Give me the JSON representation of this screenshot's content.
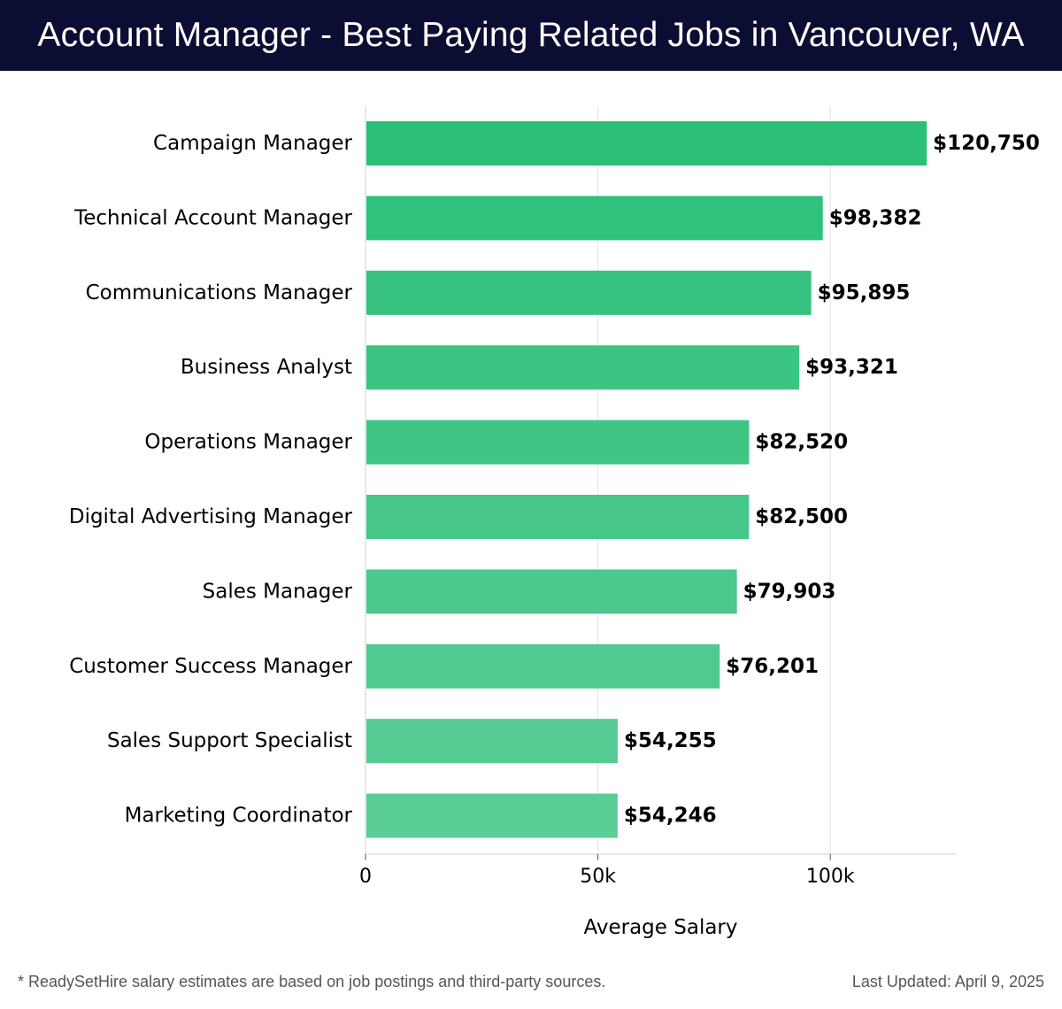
{
  "header": {
    "title": "Account Manager - Best Paying Related Jobs in Vancouver, WA"
  },
  "colors": {
    "header_bg": "#0b0d33",
    "bar_top": "#2bbf77",
    "bar_bottom": "#5bcd97",
    "grid": "#e3e3e3",
    "text": "#000000"
  },
  "chart_data": {
    "type": "bar",
    "orientation": "horizontal",
    "categories": [
      "Campaign Manager",
      "Technical Account Manager",
      "Communications Manager",
      "Business Analyst",
      "Operations Manager",
      "Digital Advertising Manager",
      "Sales Manager",
      "Customer Success Manager",
      "Sales Support Specialist",
      "Marketing Coordinator"
    ],
    "values": [
      120750,
      98382,
      95895,
      93321,
      82520,
      82500,
      79903,
      76201,
      54255,
      54246
    ],
    "value_labels": [
      "$120,750",
      "$98,382",
      "$95,895",
      "$93,321",
      "$82,520",
      "$82,500",
      "$79,903",
      "$76,201",
      "$54,255",
      "$54,246"
    ],
    "x_ticks": [
      0,
      50000,
      100000
    ],
    "x_tick_labels": [
      "0",
      "50k",
      "100k"
    ],
    "xlim": [
      0,
      127000
    ],
    "xlabel": "Average Salary",
    "ylabel": "",
    "grid": true
  },
  "footer": {
    "note": "* ReadySetHire salary estimates are based on job postings and third-party sources.",
    "updated": "Last Updated: April 9, 2025"
  }
}
